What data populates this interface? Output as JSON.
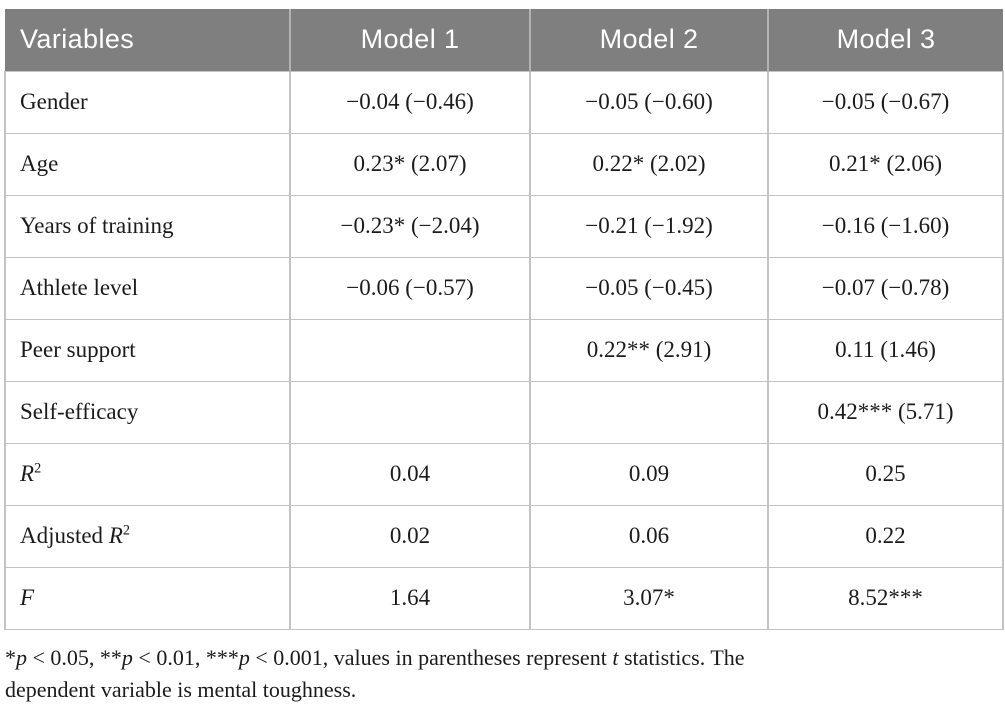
{
  "colors": {
    "header_bg": "#7f7f7f",
    "header_text": "#ffffff",
    "header_divider": "#b2b2b2",
    "border": "#c3c3c3",
    "text": "#1b1b1b"
  },
  "table": {
    "columns": [
      "Variables",
      "Model 1",
      "Model 2",
      "Model 3"
    ],
    "rows": [
      {
        "variable": "Gender",
        "model1": "−0.04 (−0.46)",
        "model2": "−0.05 (−0.60)",
        "model3": "−0.05 (−0.67)"
      },
      {
        "variable": "Age",
        "model1": "0.23* (2.07)",
        "model2": "0.22* (2.02)",
        "model3": "0.21* (2.06)"
      },
      {
        "variable": "Years of training",
        "model1": "−0.23* (−2.04)",
        "model2": "−0.21 (−1.92)",
        "model3": "−0.16 (−1.60)"
      },
      {
        "variable": "Athlete level",
        "model1": "−0.06 (−0.57)",
        "model2": "−0.05 (−0.45)",
        "model3": "−0.07 (−0.78)"
      },
      {
        "variable": "Peer support",
        "model1": "",
        "model2": "0.22** (2.91)",
        "model3": "0.11 (1.46)"
      },
      {
        "variable": "Self-efficacy",
        "model1": "",
        "model2": "",
        "model3": "0.42*** (5.71)"
      },
      {
        "variable_main": "R",
        "variable_sup": "2",
        "model1": "0.04",
        "model2": "0.09",
        "model3": "0.25"
      },
      {
        "variable_pre": "Adjusted ",
        "variable_main": "R",
        "variable_sup": "2",
        "model1": "0.02",
        "model2": "0.06",
        "model3": "0.22"
      },
      {
        "variable_italic": "F",
        "model1": "1.64",
        "model2": "3.07*",
        "model3": "8.52***"
      }
    ]
  },
  "footnote": {
    "line1": [
      {
        "t": "*"
      },
      {
        "t": "p"
      },
      {
        "t": " < 0.05, **"
      },
      {
        "t": "p"
      },
      {
        "t": " < 0.01, ***"
      },
      {
        "t": "p"
      },
      {
        "t": " < 0.001, values in parentheses represent "
      },
      {
        "t": "t"
      },
      {
        "t": " statistics. The"
      }
    ],
    "line2": "dependent variable is mental toughness."
  }
}
